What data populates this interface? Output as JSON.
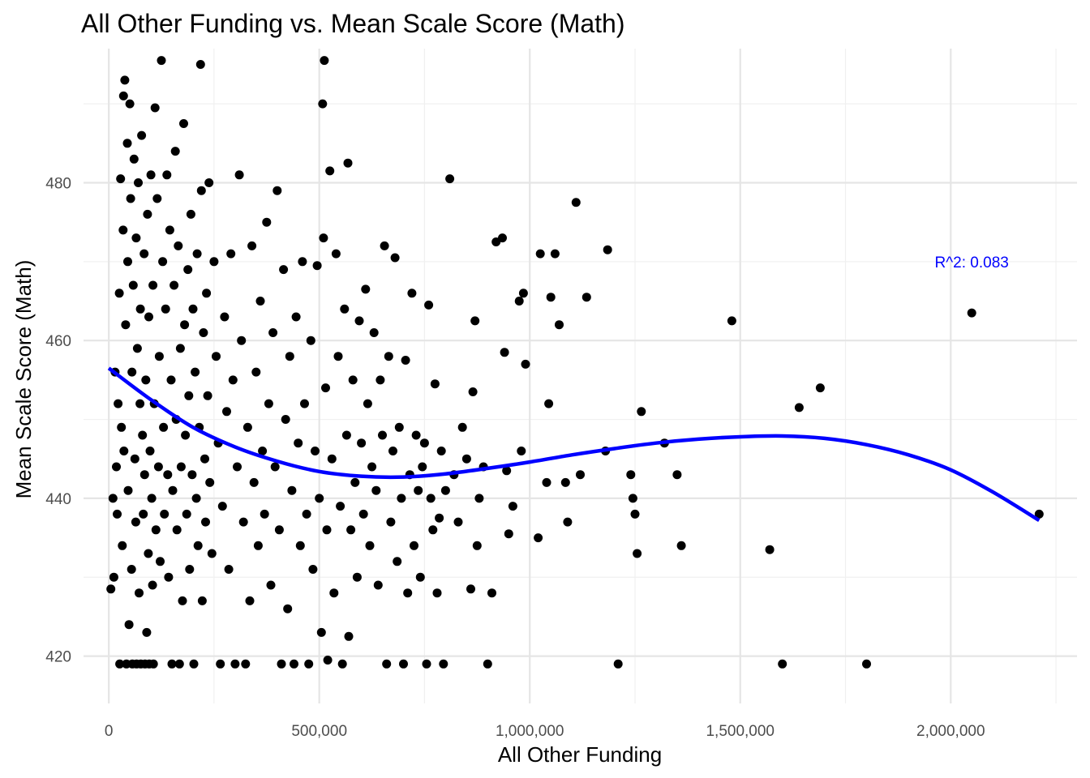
{
  "chart_data": {
    "type": "scatter",
    "title": "All Other Funding vs. Mean Scale Score (Math)",
    "xlabel": "All Other Funding",
    "ylabel": "Mean Scale Score (Math)",
    "xlim": [
      -60000,
      2300000
    ],
    "ylim": [
      414,
      497
    ],
    "x_ticks": [
      0,
      500000,
      1000000,
      1500000,
      2000000
    ],
    "x_tick_labels": [
      "0",
      "500,000",
      "1,000,000",
      "1,500,000",
      "2,000,000"
    ],
    "y_ticks": [
      420,
      440,
      460,
      480
    ],
    "y_tick_labels": [
      "420",
      "440",
      "460",
      "480"
    ],
    "grid": true,
    "annotation": {
      "text": "R^2:  0.083",
      "x": 2050000,
      "y": 470,
      "color": "#0000ff"
    },
    "fit_line": {
      "color": "#0000ff",
      "x": [
        0,
        100000,
        200000,
        300000,
        400000,
        500000,
        600000,
        700000,
        800000,
        900000,
        1000000,
        1100000,
        1200000,
        1300000,
        1400000,
        1500000,
        1600000,
        1700000,
        1800000,
        1900000,
        2000000,
        2100000,
        2210000
      ],
      "y": [
        456.5,
        452.5,
        449.0,
        446.5,
        444.7,
        443.4,
        442.8,
        442.7,
        443.1,
        443.8,
        444.6,
        445.5,
        446.3,
        447.0,
        447.5,
        447.8,
        447.9,
        447.6,
        446.8,
        445.5,
        443.6,
        440.8,
        437.2
      ]
    },
    "points": [
      [
        5000,
        428.5
      ],
      [
        10000,
        440
      ],
      [
        12000,
        430
      ],
      [
        15000,
        456
      ],
      [
        18000,
        444
      ],
      [
        20000,
        438
      ],
      [
        22000,
        452
      ],
      [
        25000,
        466
      ],
      [
        26000,
        419
      ],
      [
        28000,
        480.5
      ],
      [
        30000,
        449
      ],
      [
        32000,
        434
      ],
      [
        34000,
        474
      ],
      [
        35000,
        491
      ],
      [
        36000,
        446
      ],
      [
        38000,
        493
      ],
      [
        40000,
        462
      ],
      [
        42000,
        419
      ],
      [
        44000,
        485
      ],
      [
        45000,
        470
      ],
      [
        46000,
        441
      ],
      [
        48000,
        424
      ],
      [
        50000,
        490
      ],
      [
        52000,
        478
      ],
      [
        54000,
        431
      ],
      [
        55000,
        456
      ],
      [
        56000,
        419
      ],
      [
        58000,
        467
      ],
      [
        60000,
        483
      ],
      [
        62000,
        445
      ],
      [
        64000,
        437
      ],
      [
        65000,
        473
      ],
      [
        66000,
        419
      ],
      [
        68000,
        459
      ],
      [
        70000,
        480
      ],
      [
        72000,
        428
      ],
      [
        74000,
        452
      ],
      [
        75000,
        464
      ],
      [
        76000,
        419
      ],
      [
        78000,
        486
      ],
      [
        80000,
        448
      ],
      [
        82000,
        438
      ],
      [
        84000,
        471
      ],
      [
        85000,
        443
      ],
      [
        86000,
        419
      ],
      [
        88000,
        455
      ],
      [
        90000,
        423
      ],
      [
        92000,
        476
      ],
      [
        94000,
        433
      ],
      [
        95000,
        463
      ],
      [
        96000,
        419
      ],
      [
        98000,
        446
      ],
      [
        100000,
        481
      ],
      [
        102000,
        440
      ],
      [
        104000,
        429
      ],
      [
        105000,
        467
      ],
      [
        106000,
        419
      ],
      [
        108000,
        452
      ],
      [
        110000,
        489.5
      ],
      [
        112000,
        436
      ],
      [
        115000,
        478
      ],
      [
        118000,
        444
      ],
      [
        120000,
        458
      ],
      [
        122000,
        432
      ],
      [
        125000,
        495.5
      ],
      [
        128000,
        470
      ],
      [
        130000,
        449
      ],
      [
        132000,
        438
      ],
      [
        135000,
        464
      ],
      [
        138000,
        481
      ],
      [
        140000,
        443
      ],
      [
        142000,
        430
      ],
      [
        145000,
        474
      ],
      [
        148000,
        455
      ],
      [
        150000,
        419
      ],
      [
        152000,
        441
      ],
      [
        155000,
        467
      ],
      [
        158000,
        484
      ],
      [
        160000,
        450
      ],
      [
        162000,
        436
      ],
      [
        165000,
        472
      ],
      [
        168000,
        419
      ],
      [
        170000,
        459
      ],
      [
        172000,
        444
      ],
      [
        175000,
        427
      ],
      [
        178000,
        487.5
      ],
      [
        180000,
        462
      ],
      [
        182000,
        448
      ],
      [
        185000,
        438
      ],
      [
        188000,
        469
      ],
      [
        190000,
        453
      ],
      [
        192000,
        431
      ],
      [
        195000,
        476
      ],
      [
        198000,
        443
      ],
      [
        200000,
        464
      ],
      [
        202000,
        419
      ],
      [
        205000,
        456
      ],
      [
        208000,
        440
      ],
      [
        210000,
        471
      ],
      [
        212000,
        434
      ],
      [
        215000,
        449
      ],
      [
        218000,
        495
      ],
      [
        220000,
        479
      ],
      [
        222000,
        427
      ],
      [
        225000,
        461
      ],
      [
        228000,
        445
      ],
      [
        230000,
        437
      ],
      [
        232000,
        466
      ],
      [
        235000,
        453
      ],
      [
        238000,
        480
      ],
      [
        240000,
        442
      ],
      [
        245000,
        433
      ],
      [
        250000,
        470
      ],
      [
        255000,
        458
      ],
      [
        260000,
        447
      ],
      [
        265000,
        419
      ],
      [
        270000,
        439
      ],
      [
        275000,
        463
      ],
      [
        280000,
        451
      ],
      [
        285000,
        431
      ],
      [
        290000,
        471
      ],
      [
        295000,
        455
      ],
      [
        300000,
        419
      ],
      [
        305000,
        444
      ],
      [
        310000,
        481
      ],
      [
        315000,
        460
      ],
      [
        320000,
        437
      ],
      [
        325000,
        419
      ],
      [
        330000,
        449
      ],
      [
        335000,
        427
      ],
      [
        340000,
        472
      ],
      [
        345000,
        442
      ],
      [
        350000,
        456
      ],
      [
        355000,
        434
      ],
      [
        360000,
        465
      ],
      [
        365000,
        446
      ],
      [
        370000,
        438
      ],
      [
        375000,
        475
      ],
      [
        380000,
        452
      ],
      [
        385000,
        429
      ],
      [
        390000,
        461
      ],
      [
        395000,
        444
      ],
      [
        400000,
        479
      ],
      [
        405000,
        436
      ],
      [
        410000,
        419
      ],
      [
        415000,
        469
      ],
      [
        420000,
        450
      ],
      [
        425000,
        426
      ],
      [
        430000,
        458
      ],
      [
        435000,
        441
      ],
      [
        440000,
        419
      ],
      [
        445000,
        463
      ],
      [
        450000,
        447
      ],
      [
        455000,
        434
      ],
      [
        460000,
        470
      ],
      [
        465000,
        452
      ],
      [
        470000,
        438
      ],
      [
        475000,
        419
      ],
      [
        480000,
        460
      ],
      [
        485000,
        431
      ],
      [
        490000,
        446
      ],
      [
        495000,
        469.5
      ],
      [
        500000,
        440
      ],
      [
        505000,
        423
      ],
      [
        508000,
        490
      ],
      [
        510000,
        473
      ],
      [
        512000,
        495.5
      ],
      [
        515000,
        454
      ],
      [
        518000,
        436
      ],
      [
        520000,
        419.5
      ],
      [
        525000,
        481.5
      ],
      [
        530000,
        445
      ],
      [
        535000,
        428
      ],
      [
        540000,
        471
      ],
      [
        545000,
        458
      ],
      [
        550000,
        439
      ],
      [
        555000,
        419
      ],
      [
        560000,
        464
      ],
      [
        565000,
        448
      ],
      [
        568000,
        482.5
      ],
      [
        570000,
        422.5
      ],
      [
        575000,
        436
      ],
      [
        580000,
        455
      ],
      [
        585000,
        442
      ],
      [
        590000,
        430
      ],
      [
        595000,
        462.5
      ],
      [
        600000,
        447
      ],
      [
        605000,
        438
      ],
      [
        610000,
        466.5
      ],
      [
        615000,
        452
      ],
      [
        620000,
        434
      ],
      [
        625000,
        444
      ],
      [
        630000,
        461
      ],
      [
        635000,
        441
      ],
      [
        640000,
        429
      ],
      [
        645000,
        455
      ],
      [
        650000,
        448
      ],
      [
        655000,
        472
      ],
      [
        660000,
        419
      ],
      [
        665000,
        458
      ],
      [
        670000,
        437
      ],
      [
        675000,
        446
      ],
      [
        680000,
        470.5
      ],
      [
        685000,
        432
      ],
      [
        690000,
        449
      ],
      [
        695000,
        440
      ],
      [
        700000,
        419
      ],
      [
        705000,
        457.5
      ],
      [
        710000,
        428
      ],
      [
        715000,
        443
      ],
      [
        720000,
        466
      ],
      [
        725000,
        434
      ],
      [
        730000,
        448
      ],
      [
        735000,
        441
      ],
      [
        740000,
        430
      ],
      [
        745000,
        444
      ],
      [
        750000,
        447
      ],
      [
        755000,
        419
      ],
      [
        760000,
        464.5
      ],
      [
        765000,
        440
      ],
      [
        770000,
        436
      ],
      [
        775000,
        454.5
      ],
      [
        780000,
        428
      ],
      [
        785000,
        437.5
      ],
      [
        790000,
        446
      ],
      [
        795000,
        419
      ],
      [
        800000,
        441
      ],
      [
        810000,
        480.5
      ],
      [
        820000,
        443
      ],
      [
        830000,
        437
      ],
      [
        840000,
        449
      ],
      [
        850000,
        445
      ],
      [
        860000,
        428.5
      ],
      [
        865000,
        453.5
      ],
      [
        870000,
        462.5
      ],
      [
        875000,
        434
      ],
      [
        880000,
        440
      ],
      [
        890000,
        444
      ],
      [
        900000,
        419
      ],
      [
        910000,
        428
      ],
      [
        920000,
        472.5
      ],
      [
        935000,
        473
      ],
      [
        940000,
        458.5
      ],
      [
        945000,
        443.5
      ],
      [
        950000,
        435.5
      ],
      [
        960000,
        439
      ],
      [
        975000,
        465
      ],
      [
        980000,
        446
      ],
      [
        985000,
        466
      ],
      [
        990000,
        457
      ],
      [
        1020000,
        435
      ],
      [
        1025000,
        471
      ],
      [
        1040000,
        442
      ],
      [
        1045000,
        452
      ],
      [
        1050000,
        465.5
      ],
      [
        1060000,
        471
      ],
      [
        1070000,
        462
      ],
      [
        1085000,
        442
      ],
      [
        1090000,
        437
      ],
      [
        1110000,
        477.5
      ],
      [
        1120000,
        443
      ],
      [
        1135000,
        465.5
      ],
      [
        1180000,
        446
      ],
      [
        1185000,
        471.5
      ],
      [
        1210000,
        419
      ],
      [
        1240000,
        443
      ],
      [
        1245000,
        440
      ],
      [
        1250000,
        438
      ],
      [
        1255000,
        433
      ],
      [
        1265000,
        451
      ],
      [
        1320000,
        447
      ],
      [
        1350000,
        443
      ],
      [
        1360000,
        434
      ],
      [
        1480000,
        462.5
      ],
      [
        1570000,
        433.5
      ],
      [
        1600000,
        419
      ],
      [
        1640000,
        451.5
      ],
      [
        1690000,
        454
      ],
      [
        1800000,
        419
      ],
      [
        2050000,
        463.5
      ],
      [
        2210000,
        438
      ]
    ]
  }
}
